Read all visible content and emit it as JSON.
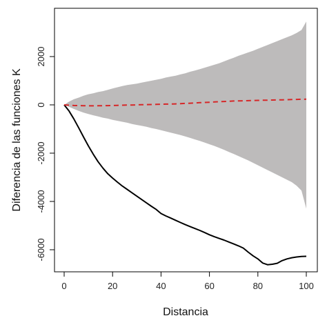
{
  "chart_data": {
    "type": "line",
    "title": "",
    "xlabel": "Distancia",
    "ylabel": "Diferencia de las funciones K",
    "xlim": [
      0,
      100
    ],
    "ylim": [
      -7000,
      3500
    ],
    "x_ticks": [
      "0",
      "20",
      "40",
      "60",
      "80",
      "100"
    ],
    "y_ticks": [
      "-6000",
      "-4000",
      "-2000",
      "0",
      "2000"
    ],
    "x_tick_values": [
      0,
      20,
      40,
      60,
      80,
      100
    ],
    "y_tick_values": [
      -6000,
      -4000,
      -2000,
      0,
      2000
    ],
    "grid": false,
    "legend": "none",
    "x": [
      0,
      2,
      4,
      6,
      8,
      10,
      12,
      14,
      16,
      18,
      20,
      22,
      24,
      26,
      28,
      30,
      32,
      34,
      36,
      38,
      40,
      42,
      44,
      46,
      48,
      50,
      52,
      54,
      56,
      58,
      60,
      62,
      64,
      66,
      68,
      70,
      72,
      74,
      76,
      78,
      80,
      82,
      84,
      86,
      88,
      90,
      92,
      94,
      96,
      98,
      100
    ],
    "series": [
      {
        "role": "observed",
        "color": "#000000",
        "values": [
          0,
          -250,
          -580,
          -950,
          -1330,
          -1700,
          -2040,
          -2350,
          -2620,
          -2850,
          -3030,
          -3200,
          -3360,
          -3500,
          -3640,
          -3780,
          -3920,
          -4060,
          -4200,
          -4330,
          -4500,
          -4600,
          -4690,
          -4780,
          -4870,
          -4960,
          -5040,
          -5120,
          -5200,
          -5290,
          -5380,
          -5460,
          -5530,
          -5600,
          -5680,
          -5760,
          -5840,
          -5930,
          -6100,
          -6250,
          -6380,
          -6550,
          -6620,
          -6600,
          -6560,
          -6450,
          -6380,
          -6330,
          -6300,
          -6280,
          -6270
        ]
      },
      {
        "role": "expected",
        "color": "#d62728",
        "values": [
          0,
          -15,
          -25,
          -30,
          -35,
          -40,
          -40,
          -38,
          -35,
          -30,
          -25,
          -20,
          -15,
          -10,
          -5,
          0,
          5,
          10,
          15,
          20,
          25,
          30,
          35,
          40,
          50,
          60,
          70,
          80,
          90,
          100,
          110,
          120,
          130,
          140,
          150,
          160,
          165,
          170,
          175,
          180,
          185,
          190,
          195,
          200,
          205,
          210,
          215,
          220,
          225,
          230,
          235
        ]
      }
    ],
    "envelope": {
      "color": "#bdbbbb",
      "upper": [
        0,
        130,
        230,
        300,
        380,
        440,
        480,
        530,
        570,
        620,
        680,
        730,
        780,
        820,
        850,
        880,
        920,
        960,
        1000,
        1040,
        1080,
        1130,
        1170,
        1210,
        1260,
        1310,
        1370,
        1420,
        1480,
        1540,
        1600,
        1660,
        1720,
        1800,
        1880,
        1950,
        2030,
        2100,
        2170,
        2240,
        2320,
        2400,
        2480,
        2560,
        2640,
        2720,
        2800,
        2880,
        2980,
        3100,
        3450
      ],
      "lower": [
        0,
        -80,
        -170,
        -250,
        -320,
        -380,
        -430,
        -480,
        -530,
        -570,
        -620,
        -660,
        -700,
        -740,
        -790,
        -830,
        -870,
        -910,
        -960,
        -1000,
        -1050,
        -1100,
        -1150,
        -1200,
        -1250,
        -1310,
        -1370,
        -1430,
        -1490,
        -1560,
        -1630,
        -1700,
        -1780,
        -1860,
        -1950,
        -2030,
        -2120,
        -2210,
        -2300,
        -2400,
        -2500,
        -2600,
        -2700,
        -2800,
        -2900,
        -3000,
        -3100,
        -3200,
        -3350,
        -3550,
        -4300
      ]
    }
  }
}
